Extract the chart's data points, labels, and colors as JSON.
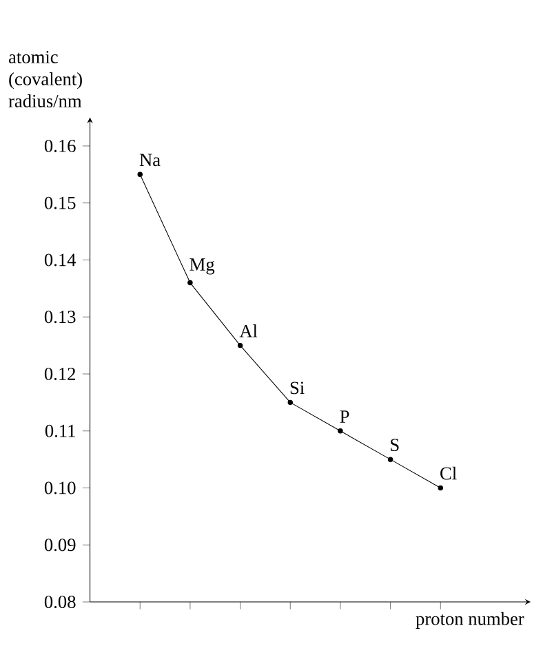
{
  "chart_data": {
    "type": "line",
    "ylabel": "atomic (covalent) radius/nm",
    "xlabel": "proton number",
    "categories": [
      null,
      null,
      null,
      null,
      null,
      null,
      null
    ],
    "values": [
      0.155,
      0.136,
      0.125,
      0.115,
      0.11,
      0.105,
      0.1
    ],
    "color": "#000000",
    "marker": "circle",
    "line_style": "solid",
    "grid": false,
    "tick_labels": "y",
    "ylim": [
      0.08,
      0.165
    ],
    "yticks": [
      {
        "value": 0.08,
        "label": "0.08"
      },
      {
        "value": 0.09,
        "label": "0.09"
      },
      {
        "value": 0.1,
        "label": "0.10"
      },
      {
        "value": 0.11,
        "label": "0.11"
      },
      {
        "value": 0.12,
        "label": "0.12"
      },
      {
        "value": 0.13,
        "label": "0.13"
      },
      {
        "value": 0.14,
        "label": "0.14"
      },
      {
        "value": 0.15,
        "label": "0.15"
      },
      {
        "value": 0.16,
        "label": "0.16"
      }
    ],
    "annotations": [
      "Na",
      "Mg",
      "Al",
      "Si",
      "P",
      "S",
      "Cl"
    ]
  }
}
